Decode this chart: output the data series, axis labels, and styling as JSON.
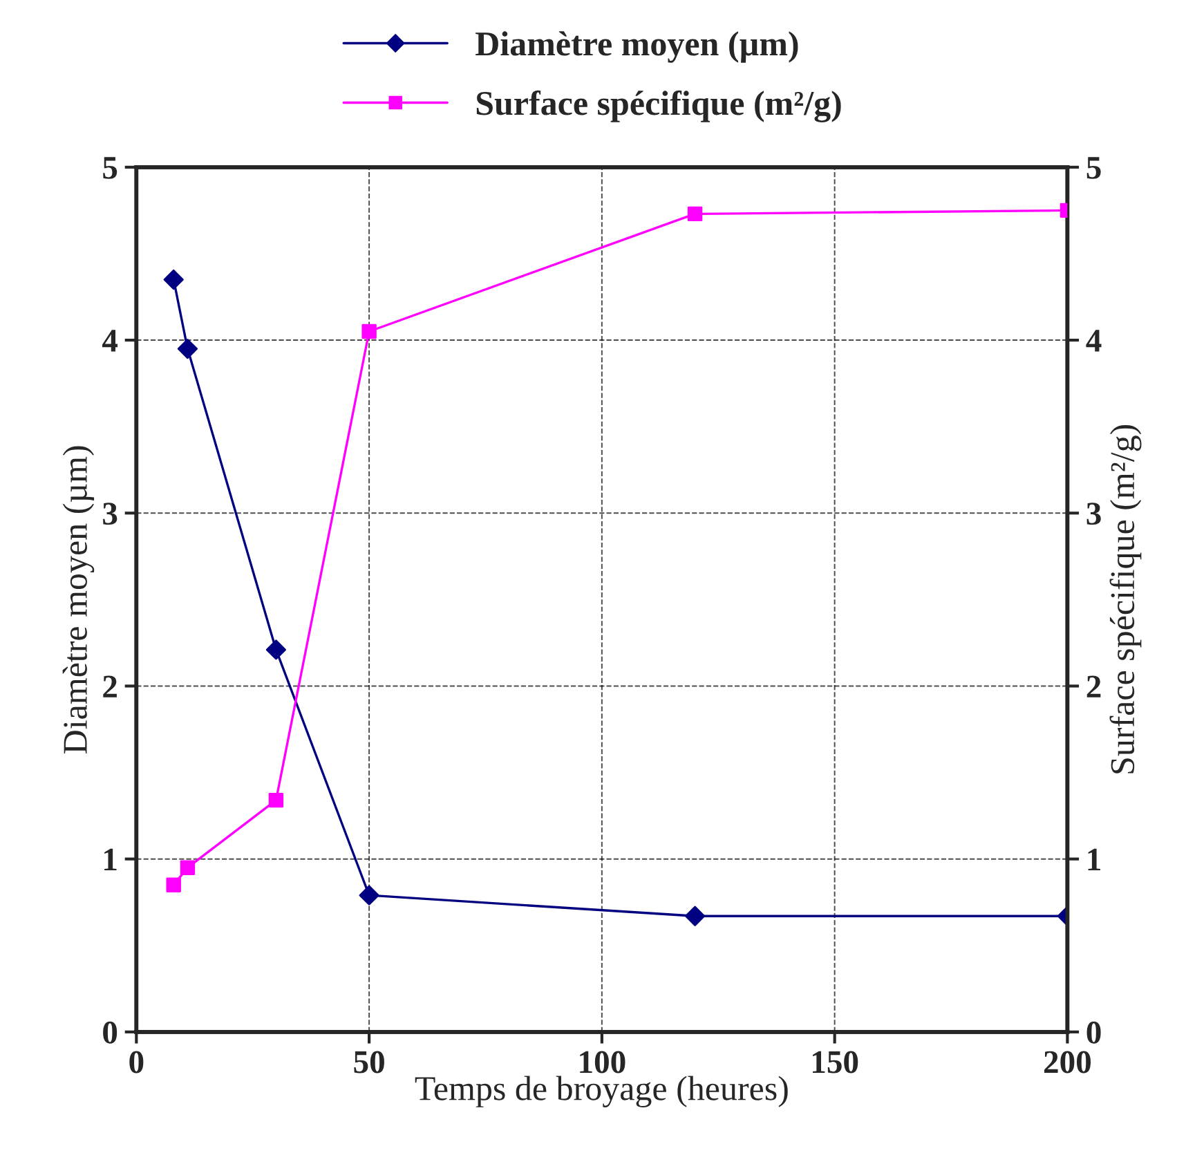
{
  "chart_data": {
    "type": "line",
    "xlabel": "Temps de broyage (heures)",
    "ylabel": "Diamètre moyen (µm)",
    "y2label": "Surface spécifique (m²/g)",
    "x": [
      8,
      11,
      30,
      50,
      120,
      200
    ],
    "series": [
      {
        "name": "Diamètre moyen (µm)",
        "color": "#000080",
        "marker": "diamond",
        "values": [
          4.35,
          3.95,
          2.21,
          0.79,
          0.67,
          0.67
        ]
      },
      {
        "name": "Surface spécifique (m²/g)",
        "color": "#ff00ff",
        "marker": "square",
        "axis": "y2",
        "values": [
          0.85,
          0.95,
          1.34,
          4.05,
          4.73,
          4.75
        ]
      }
    ],
    "xlim": [
      0,
      200
    ],
    "xticks": [
      0,
      50,
      100,
      150,
      200
    ],
    "ylim": [
      0,
      5
    ],
    "yticks": [
      0,
      1,
      2,
      3,
      4,
      5
    ],
    "y2lim": [
      0,
      5
    ],
    "y2ticks": [
      0,
      1,
      2,
      3,
      4,
      5
    ],
    "grid": true,
    "legend": "top",
    "line_style": "solid"
  }
}
